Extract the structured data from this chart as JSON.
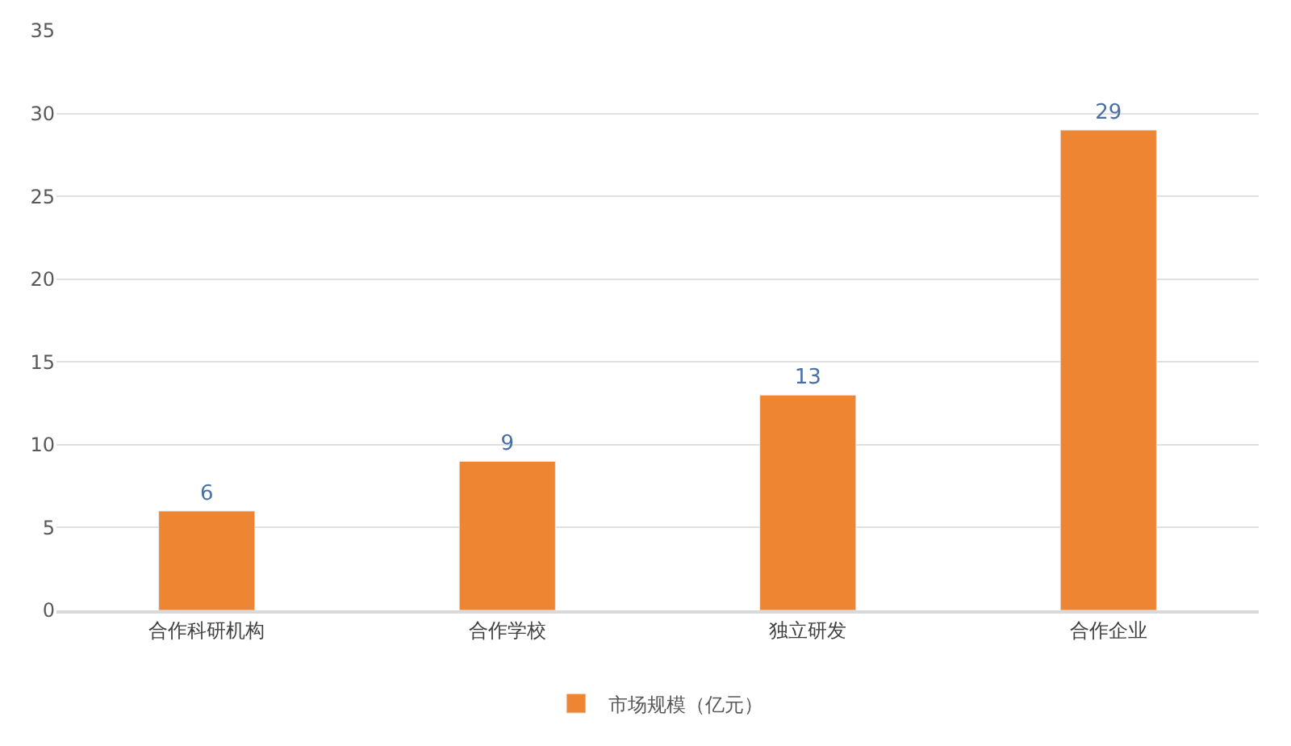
{
  "chart_data": {
    "type": "bar",
    "categories": [
      "合作科研机构",
      "合作学校",
      "独立研发",
      "合作企业"
    ],
    "series": [
      {
        "name": "市场规模（亿元）",
        "color": "#ed8533",
        "values": [
          6,
          9,
          13,
          29
        ]
      }
    ],
    "ylim": [
      0,
      35
    ],
    "yticks": [
      0,
      5,
      10,
      15,
      20,
      25,
      30,
      35
    ],
    "grid": "y",
    "legend": "bottom",
    "data_labels": true
  }
}
